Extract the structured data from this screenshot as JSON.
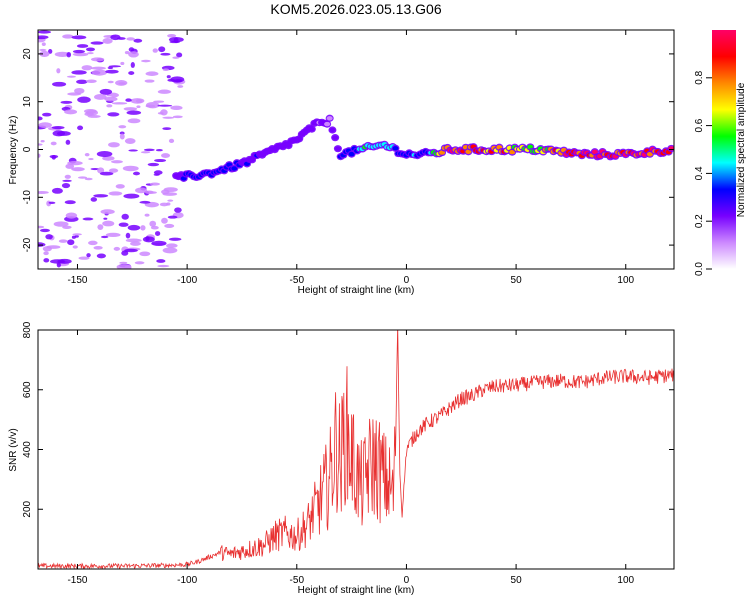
{
  "title": "KOM5.2026.023.05.13.G06",
  "chart_data": [
    {
      "type": "heatmap",
      "name": "spectrogram",
      "xlabel": "Height of straight line (km)",
      "ylabel": "Frequency (Hz)",
      "xlim": [
        -168,
        122
      ],
      "ylim": [
        -25,
        25
      ],
      "xticks": [
        -150,
        -100,
        -50,
        0,
        50,
        100
      ],
      "yticks": [
        -20,
        -10,
        0,
        10,
        20
      ],
      "colorbar": {
        "label": "Normalized spectral amplitude",
        "range": [
          0,
          1
        ],
        "ticks": [
          0.0,
          0.2,
          0.4,
          0.6,
          0.8
        ],
        "colors": [
          "#ffffff",
          "#cc88ff",
          "#7700ff",
          "#0000ff",
          "#00ffff",
          "#00ff00",
          "#ffff00",
          "#ff8800",
          "#ff0000",
          "#ff0066"
        ]
      },
      "ridge": [
        {
          "x": -105,
          "y": -6,
          "amp": 0.25
        },
        {
          "x": -90,
          "y": -5,
          "amp": 0.35
        },
        {
          "x": -75,
          "y": -3,
          "amp": 0.3
        },
        {
          "x": -60,
          "y": 0,
          "amp": 0.25
        },
        {
          "x": -50,
          "y": 2,
          "amp": 0.2
        },
        {
          "x": -42,
          "y": 5,
          "amp": 0.2
        },
        {
          "x": -35,
          "y": 6,
          "amp": 0.15
        },
        {
          "x": -30,
          "y": -1,
          "amp": 0.3
        },
        {
          "x": -20,
          "y": 0,
          "amp": 0.45
        },
        {
          "x": -10,
          "y": 1,
          "amp": 0.45
        },
        {
          "x": 0,
          "y": -1,
          "amp": 0.35
        },
        {
          "x": 10,
          "y": -1,
          "amp": 0.4
        },
        {
          "x": 20,
          "y": 0,
          "amp": 0.9
        },
        {
          "x": 40,
          "y": 0,
          "amp": 0.8
        },
        {
          "x": 60,
          "y": 0,
          "amp": 0.6
        },
        {
          "x": 80,
          "y": -1,
          "amp": 0.95
        },
        {
          "x": 100,
          "y": -1,
          "amp": 0.9
        },
        {
          "x": 122,
          "y": 0,
          "amp": 0.95
        }
      ]
    },
    {
      "type": "line",
      "name": "snr",
      "xlabel": "Height of straight line (km)",
      "ylabel": "SNR (v/v)",
      "xlim": [
        -168,
        122
      ],
      "ylim": [
        0,
        800
      ],
      "xticks": [
        -150,
        -100,
        -50,
        0,
        50,
        100
      ],
      "yticks": [
        200,
        400,
        600,
        800
      ],
      "color": "#e83030",
      "series": [
        {
          "name": "SNR",
          "x": [
            -168,
            -150,
            -130,
            -110,
            -100,
            -95,
            -90,
            -85,
            -80,
            -75,
            -70,
            -65,
            -60,
            -55,
            -50,
            -45,
            -40,
            -35,
            -32,
            -30,
            -28,
            -25,
            -22,
            -20,
            -18,
            -15,
            -12,
            -10,
            -8,
            -6,
            -5,
            -4,
            -3,
            -2,
            0,
            5,
            10,
            15,
            20,
            25,
            30,
            35,
            40,
            50,
            60,
            70,
            80,
            90,
            100,
            110,
            122
          ],
          "y": [
            10,
            10,
            10,
            12,
            15,
            25,
            40,
            55,
            50,
            60,
            70,
            80,
            110,
            120,
            110,
            150,
            220,
            300,
            420,
            350,
            470,
            380,
            300,
            270,
            320,
            360,
            330,
            300,
            280,
            250,
            380,
            820,
            320,
            180,
            400,
            460,
            490,
            510,
            540,
            570,
            580,
            600,
            610,
            615,
            625,
            630,
            625,
            640,
            645,
            640,
            650
          ]
        }
      ]
    }
  ]
}
